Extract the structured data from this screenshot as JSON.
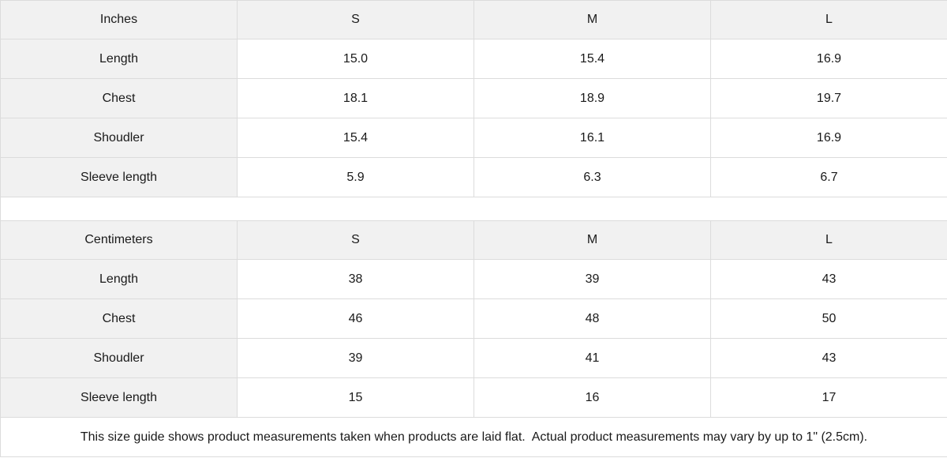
{
  "colors": {
    "header_bg": "#f1f1f1",
    "label_bg": "#f1f1f1",
    "cell_bg": "#ffffff",
    "border": "#dcdcdc",
    "text": "#1a1a1a"
  },
  "tables": [
    {
      "unit_label": "Inches",
      "size_headers": [
        "S",
        "M",
        "L"
      ],
      "rows": [
        {
          "label": "Length",
          "values": [
            "15.0",
            "15.4",
            "16.9"
          ]
        },
        {
          "label": "Chest",
          "values": [
            "18.1",
            "18.9",
            "19.7"
          ]
        },
        {
          "label": "Shoudler",
          "values": [
            "15.4",
            "16.1",
            "16.9"
          ]
        },
        {
          "label": "Sleeve length",
          "values": [
            "5.9",
            "6.3",
            "6.7"
          ]
        }
      ]
    },
    {
      "unit_label": "Centimeters",
      "size_headers": [
        "S",
        "M",
        "L"
      ],
      "rows": [
        {
          "label": "Length",
          "values": [
            "38",
            "39",
            "43"
          ]
        },
        {
          "label": "Chest",
          "values": [
            "46",
            "48",
            "50"
          ]
        },
        {
          "label": "Shoudler",
          "values": [
            "39",
            "41",
            "43"
          ]
        },
        {
          "label": "Sleeve length",
          "values": [
            "15",
            "16",
            "17"
          ]
        }
      ]
    }
  ],
  "footer": {
    "note": "This size guide shows product measurements taken when products are laid flat.  Actual product measurements may vary by up to 1\" (2.5cm)."
  }
}
